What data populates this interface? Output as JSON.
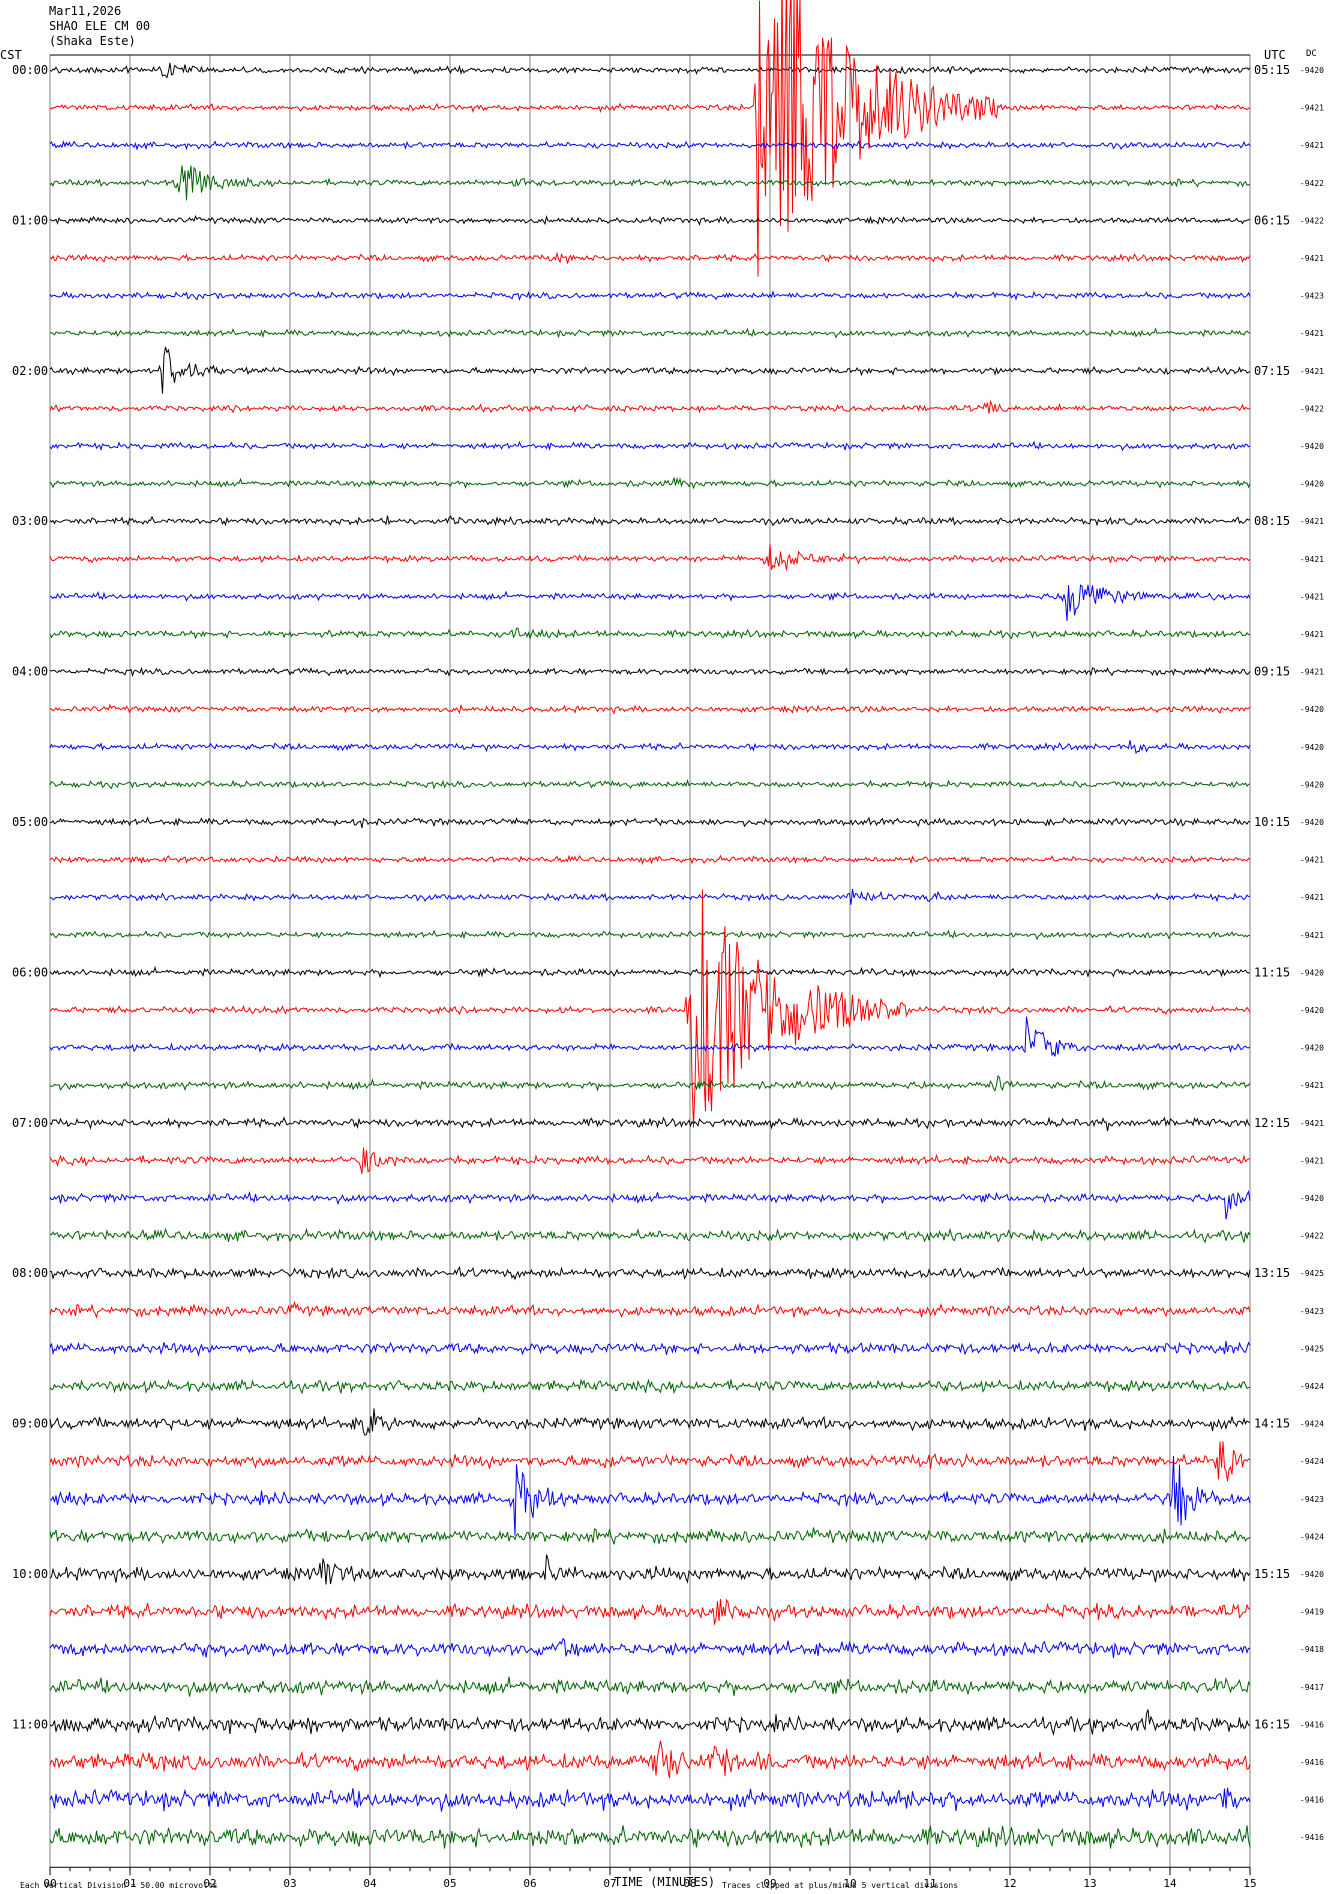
{
  "header": {
    "date": "Mar11,2026",
    "station": "SHAO ELE CM 00",
    "location": "(Shaka Este)"
  },
  "axes": {
    "left_tz": "CST",
    "right_tz": "UTC",
    "dc_label": "DC",
    "xlabel": "TIME (MINUTES)"
  },
  "footer": {
    "scale_note": "Each Vertical Division =   50.00 microvolts",
    "clip_note": "Traces clipped at plus/minus 5 vertical divisions"
  },
  "colors": {
    "cycle": [
      "#000000",
      "#ff0000",
      "#0000ff",
      "#006400"
    ],
    "grid": "#808080"
  },
  "chart_data": {
    "type": "line",
    "title": "",
    "x_ticks": [
      "00",
      "01",
      "02",
      "03",
      "04",
      "05",
      "06",
      "07",
      "08",
      "09",
      "10",
      "11",
      "12",
      "13",
      "14",
      "15"
    ],
    "xlim": [
      0,
      15
    ],
    "trace_count": 48,
    "trace_minutes": 15,
    "cst_labels": [
      "00:00",
      "01:00",
      "02:00",
      "03:00",
      "04:00",
      "05:00",
      "06:00",
      "07:00",
      "08:00",
      "09:00",
      "10:00",
      "11:00"
    ],
    "utc_labels": [
      "05:15",
      "06:15",
      "07:15",
      "08:15",
      "09:15",
      "10:15",
      "11:15",
      "12:15",
      "13:15",
      "14:15",
      "15:15",
      "16:15"
    ],
    "dc_offsets": [
      "-9420",
      "-9421",
      "-9421",
      "-9422",
      "-9422",
      "-9421",
      "-9423",
      "-9421",
      "-9421",
      "-9422",
      "-9420",
      "-9420",
      "-9421",
      "-9421",
      "-9421",
      "-9421",
      "-9421",
      "-9420",
      "-9420",
      "-9420",
      "-9420",
      "-9421",
      "-9421",
      "-9421",
      "-9420",
      "-9420",
      "-9420",
      "-9421",
      "-9421",
      "-9421",
      "-9420",
      "-9422",
      "-9425",
      "-9423",
      "-9425",
      "-9424",
      "-9424",
      "-9424",
      "-9423",
      "-9424",
      "-9420",
      "-9419",
      "-9418",
      "-9417",
      "-9416",
      "-9416",
      "-9416",
      "-9416"
    ],
    "noise_level": [
      0.9,
      0.9,
      0.9,
      0.9,
      0.9,
      0.9,
      0.9,
      0.9,
      1.0,
      0.9,
      0.9,
      0.9,
      1.0,
      0.9,
      0.9,
      1.0,
      0.9,
      0.9,
      0.9,
      0.9,
      1.0,
      0.9,
      0.9,
      0.9,
      1.0,
      1.0,
      1.0,
      1.1,
      1.2,
      1.2,
      1.2,
      1.5,
      1.5,
      1.5,
      1.6,
      1.6,
      1.7,
      1.8,
      1.8,
      1.9,
      1.9,
      2.0,
      2.0,
      2.1,
      2.2,
      2.4,
      2.6,
      2.8
    ],
    "events": [
      {
        "trace": 0,
        "minute": 1.4,
        "amp": 12,
        "dur": 0.5
      },
      {
        "trace": 0,
        "minute": 10.6,
        "amp": 4,
        "dur": 0.2
      },
      {
        "trace": 3,
        "minute": 1.6,
        "amp": 30,
        "dur": 0.8
      },
      {
        "trace": 3,
        "minute": 5.8,
        "amp": 5,
        "dur": 0.5
      },
      {
        "trace": 1,
        "minute": 8.85,
        "amp": 200,
        "dur": 2.5
      },
      {
        "trace": 5,
        "minute": 6.3,
        "amp": 8,
        "dur": 0.4
      },
      {
        "trace": 8,
        "minute": 1.4,
        "amp": 28,
        "dur": 0.8
      },
      {
        "trace": 8,
        "minute": 10.8,
        "amp": 5,
        "dur": 0.2
      },
      {
        "trace": 9,
        "minute": 11.7,
        "amp": 9,
        "dur": 0.3
      },
      {
        "trace": 11,
        "minute": 7.8,
        "amp": 9,
        "dur": 0.3
      },
      {
        "trace": 12,
        "minute": 4.2,
        "amp": 4,
        "dur": 0.3
      },
      {
        "trace": 12,
        "minute": 5.0,
        "amp": 4,
        "dur": 0.5
      },
      {
        "trace": 13,
        "minute": 8.95,
        "amp": 20,
        "dur": 1.0
      },
      {
        "trace": 14,
        "minute": 12.7,
        "amp": 30,
        "dur": 1.0
      },
      {
        "trace": 14,
        "minute": 14.5,
        "amp": 4,
        "dur": 0.5
      },
      {
        "trace": 15,
        "minute": 5.8,
        "amp": 12,
        "dur": 0.5
      },
      {
        "trace": 15,
        "minute": 3.5,
        "amp": 4,
        "dur": 0.3
      },
      {
        "trace": 16,
        "minute": 3.7,
        "amp": 4,
        "dur": 0.3
      },
      {
        "trace": 18,
        "minute": 13.5,
        "amp": 10,
        "dur": 0.4
      },
      {
        "trace": 20,
        "minute": 3.9,
        "amp": 6,
        "dur": 0.2
      },
      {
        "trace": 22,
        "minute": 10.0,
        "amp": 10,
        "dur": 0.6
      },
      {
        "trace": 22,
        "minute": 11.0,
        "amp": 8,
        "dur": 0.5
      },
      {
        "trace": 25,
        "minute": 8.0,
        "amp": 140,
        "dur": 2.3
      },
      {
        "trace": 25,
        "minute": 8.7,
        "amp": 60,
        "dur": 0.6
      },
      {
        "trace": 26,
        "minute": 12.2,
        "amp": 36,
        "dur": 0.7
      },
      {
        "trace": 26,
        "minute": 14.8,
        "amp": 6,
        "dur": 0.3
      },
      {
        "trace": 27,
        "minute": 11.8,
        "amp": 14,
        "dur": 0.3
      },
      {
        "trace": 27,
        "minute": 0.2,
        "amp": 4,
        "dur": 0.3
      },
      {
        "trace": 28,
        "minute": 13.2,
        "amp": 8,
        "dur": 0.2
      },
      {
        "trace": 28,
        "minute": 13.9,
        "amp": 5,
        "dur": 0.2
      },
      {
        "trace": 29,
        "minute": 3.9,
        "amp": 18,
        "dur": 0.6
      },
      {
        "trace": 30,
        "minute": 14.7,
        "amp": 24,
        "dur": 0.4
      },
      {
        "trace": 31,
        "minute": 13.0,
        "amp": 5,
        "dur": 0.3
      },
      {
        "trace": 32,
        "minute": 2.8,
        "amp": 5,
        "dur": 0.3
      },
      {
        "trace": 32,
        "minute": 12.8,
        "amp": 5,
        "dur": 0.3
      },
      {
        "trace": 33,
        "minute": 3.0,
        "amp": 7,
        "dur": 0.2
      },
      {
        "trace": 35,
        "minute": 11.1,
        "amp": 5,
        "dur": 0.3
      },
      {
        "trace": 36,
        "minute": 3.9,
        "amp": 18,
        "dur": 0.6
      },
      {
        "trace": 36,
        "minute": 1.4,
        "amp": 5,
        "dur": 0.2
      },
      {
        "trace": 37,
        "minute": 14.6,
        "amp": 30,
        "dur": 0.5
      },
      {
        "trace": 37,
        "minute": 11.0,
        "amp": 10,
        "dur": 0.8
      },
      {
        "trace": 37,
        "minute": 6.9,
        "amp": 5,
        "dur": 0.6
      },
      {
        "trace": 38,
        "minute": 5.8,
        "amp": 40,
        "dur": 0.6
      },
      {
        "trace": 38,
        "minute": 14.0,
        "amp": 60,
        "dur": 0.5
      },
      {
        "trace": 38,
        "minute": 0.0,
        "amp": 10,
        "dur": 0.4
      },
      {
        "trace": 38,
        "minute": 10.7,
        "amp": 6,
        "dur": 0.2
      },
      {
        "trace": 40,
        "minute": 3.4,
        "amp": 22,
        "dur": 0.4
      },
      {
        "trace": 40,
        "minute": 6.2,
        "amp": 20,
        "dur": 0.4
      },
      {
        "trace": 40,
        "minute": 4.4,
        "amp": 6,
        "dur": 0.3
      },
      {
        "trace": 40,
        "minute": 7.5,
        "amp": 6,
        "dur": 0.2
      },
      {
        "trace": 41,
        "minute": 8.3,
        "amp": 14,
        "dur": 0.9
      },
      {
        "trace": 41,
        "minute": 13.0,
        "amp": 10,
        "dur": 0.3
      },
      {
        "trace": 42,
        "minute": 6.4,
        "amp": 16,
        "dur": 0.3
      },
      {
        "trace": 44,
        "minute": 0.3,
        "amp": 10,
        "dur": 0.4
      },
      {
        "trace": 44,
        "minute": 3.2,
        "amp": 7,
        "dur": 0.3
      },
      {
        "trace": 44,
        "minute": 13.7,
        "amp": 14,
        "dur": 0.2
      },
      {
        "trace": 45,
        "minute": 7.6,
        "amp": 26,
        "dur": 0.7
      },
      {
        "trace": 45,
        "minute": 8.3,
        "amp": 22,
        "dur": 0.7
      },
      {
        "trace": 45,
        "minute": 1.2,
        "amp": 7,
        "dur": 0.3
      },
      {
        "trace": 46,
        "minute": 14.6,
        "amp": 14,
        "dur": 0.6
      },
      {
        "trace": 46,
        "minute": 10.4,
        "amp": 8,
        "dur": 0.9
      },
      {
        "trace": 46,
        "minute": 5.6,
        "amp": 7,
        "dur": 0.4
      },
      {
        "trace": 47,
        "minute": 6.2,
        "amp": 8,
        "dur": 0.6
      },
      {
        "trace": 47,
        "minute": 13.6,
        "amp": 7,
        "dur": 0.3
      }
    ]
  }
}
